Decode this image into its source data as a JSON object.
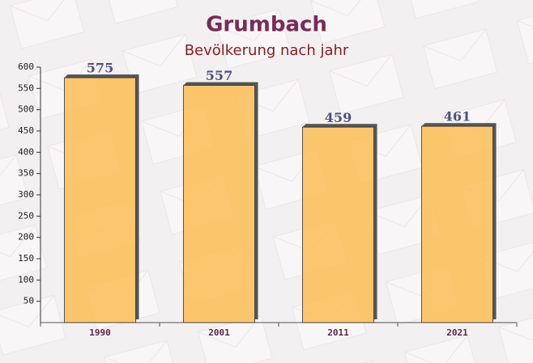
{
  "chart_data": {
    "type": "bar",
    "title": "Grumbach",
    "subtitle": "Bevölkerung nach jahr",
    "categories": [
      "1990",
      "2001",
      "2011",
      "2021"
    ],
    "values": [
      575,
      557,
      459,
      461
    ],
    "color": "#fbbd55",
    "ylim": [
      0,
      600
    ],
    "yticks": [
      50,
      100,
      150,
      200,
      250,
      300,
      350,
      400,
      450,
      500,
      550,
      600
    ]
  }
}
